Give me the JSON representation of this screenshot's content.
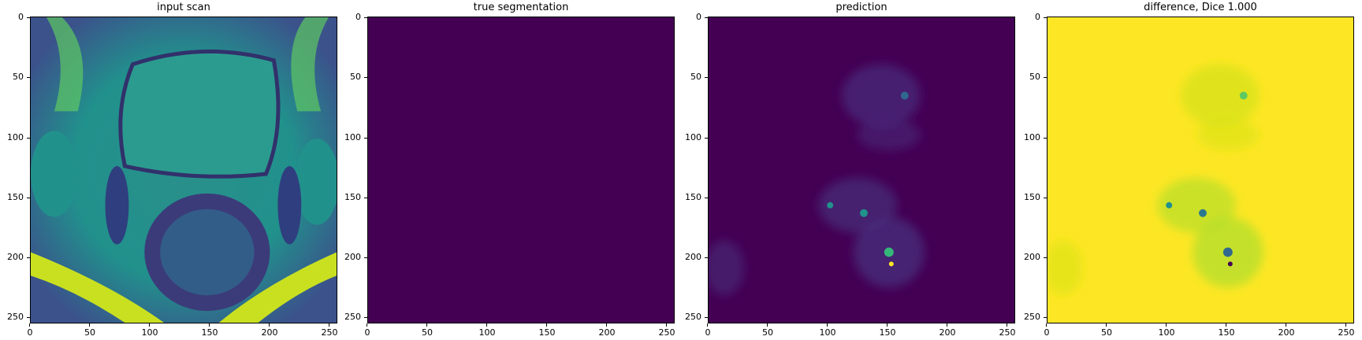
{
  "figure": {
    "panels": [
      {
        "title": "input scan"
      },
      {
        "title": "true segmentation"
      },
      {
        "title": "prediction"
      },
      {
        "title": "difference, Dice 1.000"
      }
    ],
    "axis_ticks": [
      "0",
      "50",
      "100",
      "150",
      "200",
      "250"
    ],
    "colors": {
      "viridis_dark": "#440154",
      "viridis_teal": "#21918c",
      "viridis_green": "#5ec962",
      "viridis_yellow": "#fde725"
    }
  }
}
